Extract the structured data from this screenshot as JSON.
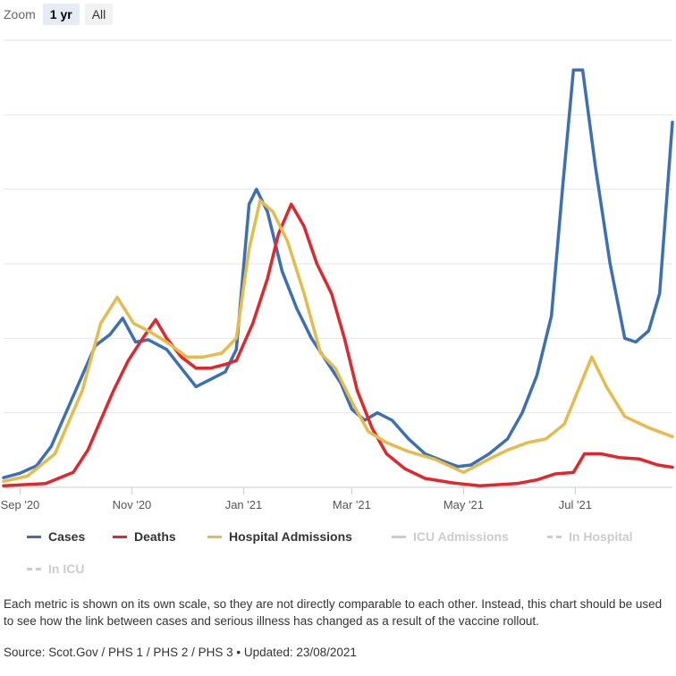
{
  "zoom": {
    "label": "Zoom",
    "options": [
      "1 yr",
      "All"
    ],
    "active": "1 yr"
  },
  "colors": {
    "cases": "#3b6fb6",
    "deaths": "#e3262c",
    "hospital": "#e6bb4a",
    "hidden": "#cccccc",
    "grid": "#e6e6e6"
  },
  "legend": [
    {
      "label": "Cases",
      "color": "#3b6fb6",
      "visible": true,
      "dashed": false
    },
    {
      "label": "Deaths",
      "color": "#e3262c",
      "visible": true,
      "dashed": false
    },
    {
      "label": "Hospital Admissions",
      "color": "#e6bb4a",
      "visible": true,
      "dashed": false
    },
    {
      "label": "ICU Admissions",
      "color": "#cccccc",
      "visible": false,
      "dashed": false
    },
    {
      "label": "In Hospital",
      "color": "#cccccc",
      "visible": false,
      "dashed": true
    },
    {
      "label": "In ICU",
      "color": "#cccccc",
      "visible": false,
      "dashed": true
    }
  ],
  "note": "Each metric is shown on its own scale, so they are not directly comparable to each other. Instead, this chart should be used to see how the link between cases and serious illness has changed as a result of the vaccine rollout.",
  "source": "Source: Scot.Gov / PHS 1 / PHS 2 / PHS 3 • Updated: 23/08/2021",
  "chart_data": {
    "type": "line",
    "x_tick_labels": [
      "Sep '20",
      "Nov '20",
      "Jan '21",
      "Mar '21",
      "May '21",
      "Jul '21"
    ],
    "x_tick_dates": [
      "2020-09-01",
      "2020-11-01",
      "2021-01-01",
      "2021-03-01",
      "2021-05-01",
      "2021-07-01"
    ],
    "x_range": [
      "2020-08-23",
      "2021-08-23"
    ],
    "y_axis": "hidden (each metric on its own scale, values read as relative level 0-6)",
    "ylim": [
      0,
      6
    ],
    "grid": true,
    "legend_position": "bottom",
    "series": [
      {
        "name": "Cases",
        "color": "#3b6fb6",
        "points": [
          [
            "2020-08-23",
            0.13
          ],
          [
            "2020-09-01",
            0.19
          ],
          [
            "2020-09-10",
            0.29
          ],
          [
            "2020-09-18",
            0.55
          ],
          [
            "2020-09-26",
            1.0
          ],
          [
            "2020-10-04",
            1.45
          ],
          [
            "2020-10-12",
            1.9
          ],
          [
            "2020-10-20",
            2.05
          ],
          [
            "2020-10-27",
            2.27
          ],
          [
            "2020-11-03",
            1.95
          ],
          [
            "2020-11-10",
            1.98
          ],
          [
            "2020-11-20",
            1.85
          ],
          [
            "2020-11-28",
            1.6
          ],
          [
            "2020-12-06",
            1.35
          ],
          [
            "2020-12-14",
            1.45
          ],
          [
            "2020-12-22",
            1.55
          ],
          [
            "2020-12-28",
            1.85
          ],
          [
            "2021-01-04",
            3.8
          ],
          [
            "2021-01-08",
            4.0
          ],
          [
            "2021-01-14",
            3.7
          ],
          [
            "2021-01-22",
            2.9
          ],
          [
            "2021-01-30",
            2.4
          ],
          [
            "2021-02-07",
            2.0
          ],
          [
            "2021-02-15",
            1.7
          ],
          [
            "2021-02-23",
            1.4
          ],
          [
            "2021-03-01",
            1.05
          ],
          [
            "2021-03-08",
            0.9
          ],
          [
            "2021-03-15",
            1.0
          ],
          [
            "2021-03-23",
            0.9
          ],
          [
            "2021-04-01",
            0.65
          ],
          [
            "2021-04-10",
            0.45
          ],
          [
            "2021-04-20",
            0.35
          ],
          [
            "2021-04-28",
            0.28
          ],
          [
            "2021-05-05",
            0.3
          ],
          [
            "2021-05-15",
            0.45
          ],
          [
            "2021-05-25",
            0.65
          ],
          [
            "2021-06-02",
            1.0
          ],
          [
            "2021-06-10",
            1.5
          ],
          [
            "2021-06-18",
            2.3
          ],
          [
            "2021-06-24",
            4.0
          ],
          [
            "2021-06-30",
            5.6
          ],
          [
            "2021-07-05",
            5.6
          ],
          [
            "2021-07-12",
            4.3
          ],
          [
            "2021-07-20",
            3.0
          ],
          [
            "2021-07-28",
            2.0
          ],
          [
            "2021-08-03",
            1.95
          ],
          [
            "2021-08-10",
            2.1
          ],
          [
            "2021-08-16",
            2.6
          ],
          [
            "2021-08-23",
            4.9
          ]
        ]
      },
      {
        "name": "Deaths",
        "color": "#e3262c",
        "points": [
          [
            "2020-08-23",
            0.02
          ],
          [
            "2020-09-15",
            0.05
          ],
          [
            "2020-09-30",
            0.2
          ],
          [
            "2020-10-08",
            0.5
          ],
          [
            "2020-10-15",
            0.9
          ],
          [
            "2020-10-22",
            1.3
          ],
          [
            "2020-10-30",
            1.7
          ],
          [
            "2020-11-07",
            2.0
          ],
          [
            "2020-11-14",
            2.25
          ],
          [
            "2020-11-20",
            2.0
          ],
          [
            "2020-11-28",
            1.75
          ],
          [
            "2020-12-06",
            1.6
          ],
          [
            "2020-12-14",
            1.6
          ],
          [
            "2020-12-22",
            1.65
          ],
          [
            "2020-12-28",
            1.7
          ],
          [
            "2021-01-06",
            2.2
          ],
          [
            "2021-01-14",
            2.8
          ],
          [
            "2021-01-20",
            3.4
          ],
          [
            "2021-01-27",
            3.8
          ],
          [
            "2021-02-03",
            3.5
          ],
          [
            "2021-02-10",
            3.0
          ],
          [
            "2021-02-18",
            2.6
          ],
          [
            "2021-02-25",
            2.0
          ],
          [
            "2021-03-04",
            1.3
          ],
          [
            "2021-03-12",
            0.8
          ],
          [
            "2021-03-20",
            0.45
          ],
          [
            "2021-03-30",
            0.25
          ],
          [
            "2021-04-10",
            0.12
          ],
          [
            "2021-04-25",
            0.06
          ],
          [
            "2021-05-10",
            0.02
          ],
          [
            "2021-05-30",
            0.05
          ],
          [
            "2021-06-10",
            0.1
          ],
          [
            "2021-06-20",
            0.18
          ],
          [
            "2021-06-30",
            0.2
          ],
          [
            "2021-07-06",
            0.45
          ],
          [
            "2021-07-15",
            0.45
          ],
          [
            "2021-07-25",
            0.4
          ],
          [
            "2021-08-05",
            0.38
          ],
          [
            "2021-08-15",
            0.3
          ],
          [
            "2021-08-23",
            0.27
          ]
        ]
      },
      {
        "name": "Hospital Admissions",
        "color": "#e6bb4a",
        "points": [
          [
            "2020-08-23",
            0.08
          ],
          [
            "2020-09-05",
            0.15
          ],
          [
            "2020-09-20",
            0.45
          ],
          [
            "2020-10-05",
            1.3
          ],
          [
            "2020-10-15",
            2.2
          ],
          [
            "2020-10-24",
            2.55
          ],
          [
            "2020-11-02",
            2.2
          ],
          [
            "2020-11-10",
            2.1
          ],
          [
            "2020-11-20",
            1.95
          ],
          [
            "2020-12-01",
            1.75
          ],
          [
            "2020-12-10",
            1.75
          ],
          [
            "2020-12-20",
            1.8
          ],
          [
            "2020-12-28",
            2.0
          ],
          [
            "2021-01-04",
            3.2
          ],
          [
            "2021-01-10",
            3.85
          ],
          [
            "2021-01-17",
            3.7
          ],
          [
            "2021-01-25",
            3.3
          ],
          [
            "2021-02-03",
            2.6
          ],
          [
            "2021-02-12",
            1.8
          ],
          [
            "2021-02-20",
            1.6
          ],
          [
            "2021-03-01",
            1.15
          ],
          [
            "2021-03-10",
            0.75
          ],
          [
            "2021-03-20",
            0.6
          ],
          [
            "2021-04-01",
            0.48
          ],
          [
            "2021-04-15",
            0.38
          ],
          [
            "2021-05-01",
            0.2
          ],
          [
            "2021-05-15",
            0.38
          ],
          [
            "2021-05-25",
            0.5
          ],
          [
            "2021-06-05",
            0.6
          ],
          [
            "2021-06-15",
            0.65
          ],
          [
            "2021-06-25",
            0.85
          ],
          [
            "2021-07-05",
            1.45
          ],
          [
            "2021-07-10",
            1.75
          ],
          [
            "2021-07-18",
            1.35
          ],
          [
            "2021-07-28",
            0.95
          ],
          [
            "2021-08-10",
            0.8
          ],
          [
            "2021-08-23",
            0.68
          ]
        ]
      }
    ]
  }
}
